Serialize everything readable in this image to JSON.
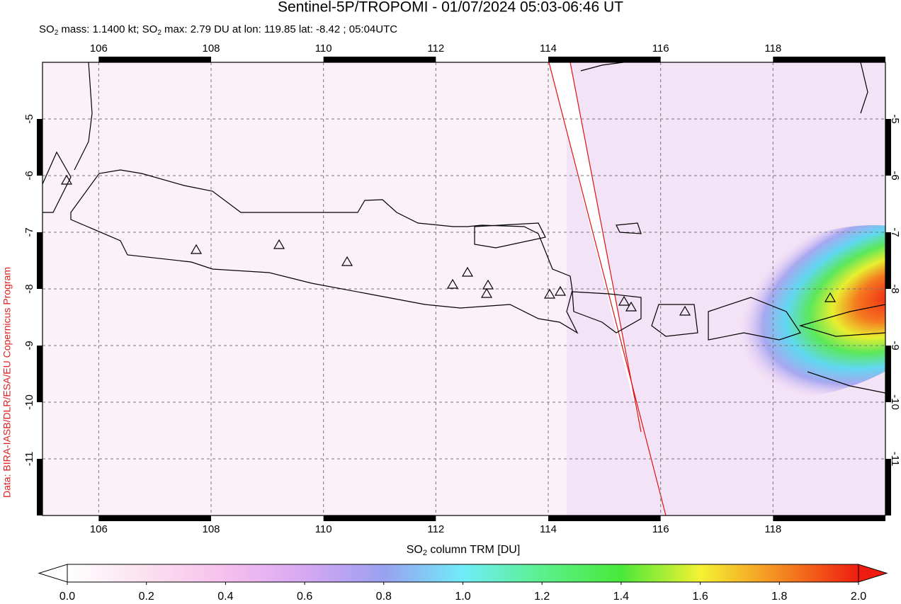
{
  "header": {
    "title": "Sentinel-5P/TROPOMI - 01/07/2024 05:03-06:46 UT",
    "subtitle": [
      "SO",
      "2",
      " mass: 1.1400 kt; SO",
      "2",
      " max: 2.79 DU at lon: 119.85 lat: -8.42 ; 05:04UTC"
    ]
  },
  "map": {
    "lonlim": [
      105,
      120
    ],
    "latlim": [
      -12,
      -4
    ],
    "lon_ticks": [
      106,
      108,
      110,
      112,
      114,
      116,
      118
    ],
    "lat_ticks": [
      -5,
      -6,
      -7,
      -8,
      -9,
      -10,
      -11
    ],
    "grid": true
  },
  "colorbar": {
    "label": [
      "SO",
      "2",
      " column TRM [DU]"
    ],
    "range": [
      0,
      2
    ],
    "ticks": [
      {
        "value": 0,
        "label": "0.0"
      },
      {
        "value": 0.2,
        "label": "0.2"
      },
      {
        "value": 0.4,
        "label": "0.4"
      },
      {
        "value": 0.6,
        "label": "0.6"
      },
      {
        "value": 0.8,
        "label": "0.8"
      },
      {
        "value": 1,
        "label": "1.0"
      },
      {
        "value": 1.2,
        "label": "1.2"
      },
      {
        "value": 1.4,
        "label": "1.4"
      },
      {
        "value": 1.6,
        "label": "1.6"
      },
      {
        "value": 1.8,
        "label": "1.8"
      },
      {
        "value": 2,
        "label": "2.0"
      }
    ]
  },
  "credit": "Data: BIRA-IASB/DLR/ESA/EU Copernicus Program"
}
